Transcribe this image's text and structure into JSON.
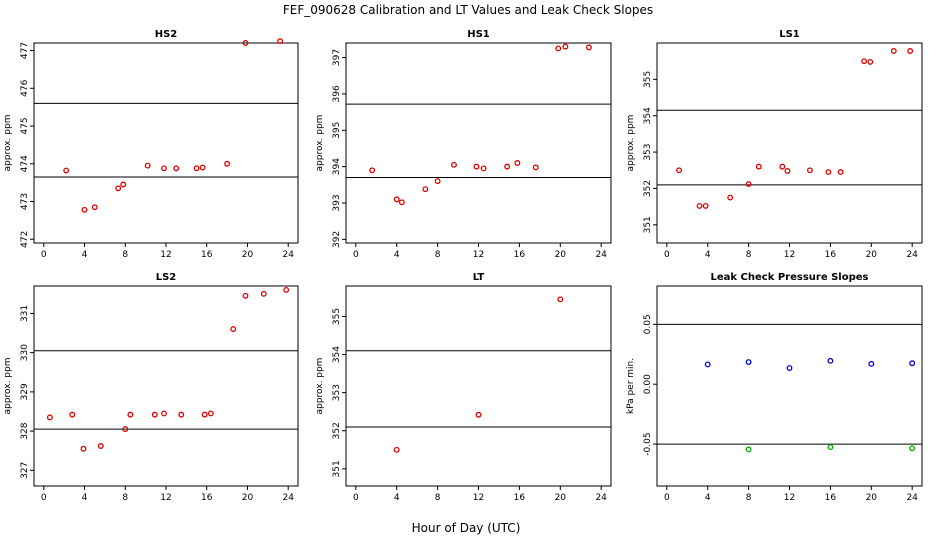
{
  "title": "FEF_090628  Calibration and LT Values and Leak Check Slopes",
  "xlabel": "Hour of Day (UTC)",
  "colors": {
    "cal": "#dd0000",
    "blue": "#0000cc",
    "green": "#00aa00",
    "line": "#000000"
  },
  "chart_data": [
    {
      "type": "scatter",
      "title": "HS2",
      "ylabel": "approx. ppm",
      "xlim": [
        0,
        24
      ],
      "xticks": [
        0,
        4,
        8,
        12,
        16,
        20,
        24
      ],
      "ylim": [
        471.9,
        477.2
      ],
      "yticks": [
        472,
        473,
        474,
        475,
        476,
        477
      ],
      "hlines": [
        473.65,
        475.6
      ],
      "series": [
        {
          "name": "calibration",
          "color": "#dd0000",
          "x": [
            2.2,
            4.0,
            5.0,
            7.3,
            7.8,
            10.2,
            11.8,
            13.0,
            15.0,
            15.6,
            18.0,
            19.8,
            23.2
          ],
          "y": [
            473.82,
            472.78,
            472.85,
            473.35,
            473.45,
            473.95,
            473.88,
            473.88,
            473.88,
            473.9,
            474.0,
            477.2,
            477.25
          ]
        }
      ]
    },
    {
      "type": "scatter",
      "title": "HS1",
      "ylabel": "approx. ppm",
      "xlim": [
        0,
        24
      ],
      "xticks": [
        0,
        4,
        8,
        12,
        16,
        20,
        24
      ],
      "ylim": [
        391.9,
        397.4
      ],
      "yticks": [
        392,
        393,
        394,
        395,
        396,
        397
      ],
      "hlines": [
        393.7,
        395.72
      ],
      "series": [
        {
          "name": "calibration",
          "color": "#dd0000",
          "x": [
            1.6,
            4.0,
            4.5,
            6.8,
            8.0,
            9.6,
            11.8,
            12.5,
            14.8,
            15.8,
            17.6,
            19.8,
            20.5,
            22.8
          ],
          "y": [
            393.9,
            393.1,
            393.02,
            393.38,
            393.6,
            394.05,
            394.0,
            393.95,
            394.0,
            394.1,
            393.98,
            397.25,
            397.3,
            397.28
          ]
        }
      ]
    },
    {
      "type": "scatter",
      "title": "LS1",
      "ylabel": "approx. ppm",
      "xlim": [
        0,
        24
      ],
      "xticks": [
        0,
        4,
        8,
        12,
        16,
        20,
        24
      ],
      "ylim": [
        350.5,
        356.0
      ],
      "yticks": [
        351,
        352,
        353,
        354,
        355
      ],
      "hlines": [
        352.1,
        354.15
      ],
      "series": [
        {
          "name": "calibration",
          "color": "#dd0000",
          "x": [
            1.2,
            3.2,
            3.8,
            6.2,
            8.0,
            9.0,
            11.3,
            11.8,
            14.0,
            15.8,
            17.0,
            19.3,
            19.9,
            22.2,
            23.8
          ],
          "y": [
            352.5,
            351.52,
            351.52,
            351.75,
            352.12,
            352.6,
            352.6,
            352.48,
            352.5,
            352.45,
            352.45,
            355.5,
            355.48,
            355.78,
            355.78
          ]
        }
      ]
    },
    {
      "type": "scatter",
      "title": "LS2",
      "ylabel": "approx. ppm",
      "xlim": [
        0,
        24
      ],
      "xticks": [
        0,
        4,
        8,
        12,
        16,
        20,
        24
      ],
      "ylim": [
        326.6,
        331.7
      ],
      "yticks": [
        327,
        328,
        329,
        330,
        331
      ],
      "hlines": [
        328.05,
        330.05
      ],
      "series": [
        {
          "name": "calibration",
          "color": "#dd0000",
          "x": [
            0.6,
            2.8,
            3.9,
            5.6,
            8.0,
            8.5,
            10.9,
            11.8,
            13.5,
            15.8,
            16.4,
            18.6,
            19.8,
            21.6,
            23.8
          ],
          "y": [
            328.35,
            328.42,
            327.55,
            327.62,
            328.05,
            328.42,
            328.42,
            328.45,
            328.42,
            328.42,
            328.45,
            330.6,
            331.45,
            331.5,
            331.6
          ]
        }
      ]
    },
    {
      "type": "scatter",
      "title": "LT",
      "ylabel": "approx. ppm",
      "xlim": [
        0,
        24
      ],
      "xticks": [
        0,
        4,
        8,
        12,
        16,
        20,
        24
      ],
      "ylim": [
        350.55,
        355.8
      ],
      "yticks": [
        351,
        352,
        353,
        354,
        355
      ],
      "hlines": [
        352.1,
        354.1
      ],
      "series": [
        {
          "name": "LT",
          "color": "#dd0000",
          "x": [
            4.0,
            12.0,
            20.0
          ],
          "y": [
            351.5,
            352.42,
            355.45
          ]
        }
      ]
    },
    {
      "type": "scatter",
      "title": "Leak Check Pressure Slopes",
      "ylabel": "kPa per min.",
      "xlim": [
        0,
        24
      ],
      "xticks": [
        0,
        4,
        8,
        12,
        16,
        20,
        24
      ],
      "ylim": [
        -0.085,
        0.082
      ],
      "yticks": [
        -0.05,
        0.0,
        0.05
      ],
      "yticklabels": [
        "-0.05",
        "0.00",
        "0.05"
      ],
      "hlines": [
        0.05,
        -0.05
      ],
      "series": [
        {
          "name": "blue",
          "color": "#0000cc",
          "x": [
            4.0,
            8.0,
            12.0,
            16.0,
            20.0,
            24.0
          ],
          "y": [
            0.0165,
            0.0185,
            0.0135,
            0.0195,
            0.017,
            0.0175
          ]
        },
        {
          "name": "green",
          "color": "#00aa00",
          "x": [
            8.0,
            16.0,
            24.0
          ],
          "y": [
            -0.0545,
            -0.0525,
            -0.0535
          ]
        }
      ]
    }
  ]
}
